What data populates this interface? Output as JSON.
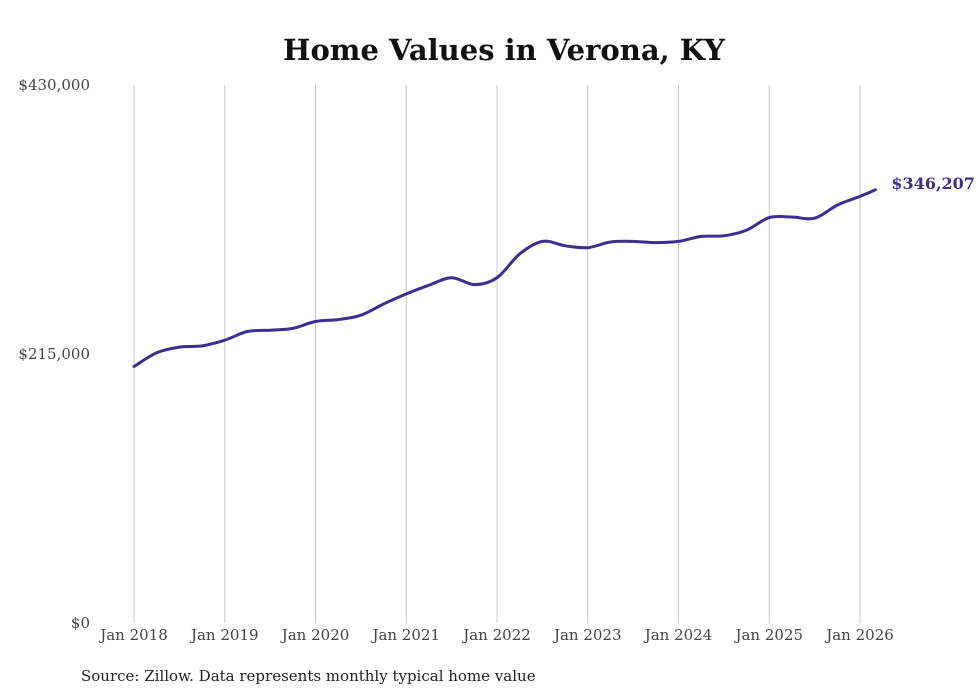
{
  "chart_data": {
    "type": "line",
    "title": "Home Values in Verona, KY",
    "xlabel": "",
    "ylabel": "",
    "ylim": [
      0,
      430000
    ],
    "yticks": [
      {
        "value": 0,
        "label": "$0"
      },
      {
        "value": 215000,
        "label": "$215,000"
      },
      {
        "value": 430000,
        "label": "$430,000"
      }
    ],
    "xlim": [
      2018.0,
      2026.0
    ],
    "xticks": [
      {
        "value": 2018,
        "label": "Jan 2018"
      },
      {
        "value": 2019,
        "label": "Jan 2019"
      },
      {
        "value": 2020,
        "label": "Jan 2020"
      },
      {
        "value": 2021,
        "label": "Jan 2021"
      },
      {
        "value": 2022,
        "label": "Jan 2022"
      },
      {
        "value": 2023,
        "label": "Jan 2023"
      },
      {
        "value": 2024,
        "label": "Jan 2024"
      },
      {
        "value": 2025,
        "label": "Jan 2025"
      },
      {
        "value": 2026,
        "label": "Jan 2026"
      }
    ],
    "grid": "vertical",
    "series": [
      {
        "name": "Typical home value",
        "color": "#3b2f8f",
        "end_label": "$346,207",
        "points": [
          [
            2018.0,
            205000
          ],
          [
            2018.25,
            216000
          ],
          [
            2018.5,
            220500
          ],
          [
            2018.75,
            221500
          ],
          [
            2019.0,
            226000
          ],
          [
            2019.25,
            233000
          ],
          [
            2019.5,
            234000
          ],
          [
            2019.75,
            235500
          ],
          [
            2020.0,
            241000
          ],
          [
            2020.25,
            242500
          ],
          [
            2020.5,
            246000
          ],
          [
            2020.75,
            255000
          ],
          [
            2021.0,
            263000
          ],
          [
            2021.25,
            270000
          ],
          [
            2021.5,
            276000
          ],
          [
            2021.75,
            270500
          ],
          [
            2022.0,
            276000
          ],
          [
            2022.25,
            295000
          ],
          [
            2022.5,
            305000
          ],
          [
            2022.75,
            301500
          ],
          [
            2023.0,
            300000
          ],
          [
            2023.25,
            304500
          ],
          [
            2023.5,
            305000
          ],
          [
            2023.75,
            304000
          ],
          [
            2024.0,
            305000
          ],
          [
            2024.25,
            309000
          ],
          [
            2024.5,
            309500
          ],
          [
            2024.75,
            314000
          ],
          [
            2025.0,
            324000
          ],
          [
            2025.25,
            324500
          ],
          [
            2025.5,
            323500
          ],
          [
            2025.75,
            334000
          ],
          [
            2026.0,
            341000
          ],
          [
            2026.17,
            346207
          ]
        ]
      }
    ]
  },
  "footer": {
    "source": "Source: Zillow. Data represents monthly typical home value"
  }
}
